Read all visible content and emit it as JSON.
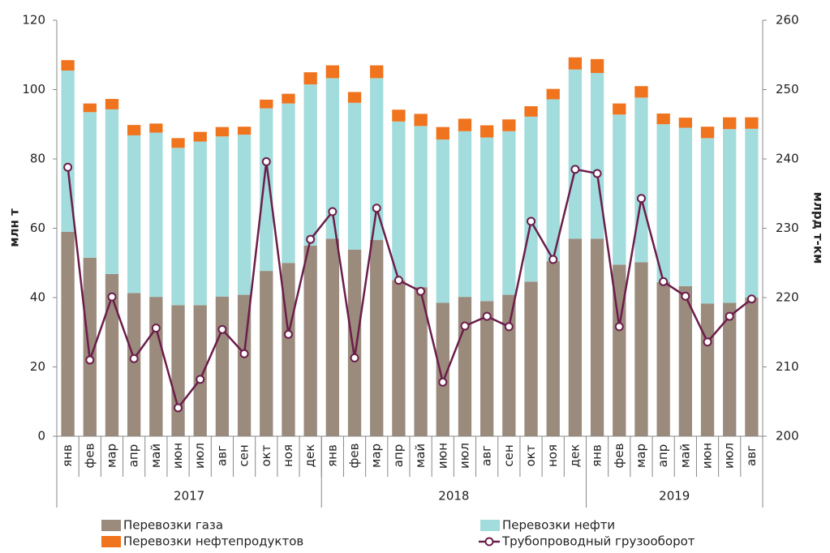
{
  "chart_data": {
    "type": "bar",
    "groups": [
      {
        "label": "2017",
        "categories": [
          "янв",
          "фев",
          "мар",
          "апр",
          "май",
          "июн",
          "июл",
          "авг",
          "сен",
          "окт",
          "ноя",
          "дек"
        ]
      },
      {
        "label": "2018",
        "categories": [
          "янв",
          "фев",
          "мар",
          "апр",
          "май",
          "июн",
          "июл",
          "авг",
          "сен",
          "окт",
          "ноя",
          "дек"
        ]
      },
      {
        "label": "2019",
        "categories": [
          "янв",
          "фев",
          "мар",
          "апр",
          "май",
          "июн",
          "июл",
          "авг"
        ]
      }
    ],
    "ylabel": "млн т",
    "y2label": "млрд т-км",
    "ylim": [
      0,
      120
    ],
    "yticks": [
      0,
      20,
      40,
      60,
      80,
      100,
      120
    ],
    "y2lim": [
      200,
      260
    ],
    "y2ticks": [
      200,
      210,
      220,
      230,
      240,
      250,
      260
    ],
    "stacked": true,
    "series": [
      {
        "name": "Перевозки газа",
        "color": "#9b8b7d",
        "values": [
          59,
          51.5,
          46.8,
          41.3,
          40.2,
          37.8,
          37.8,
          40.3,
          40.8,
          47.7,
          50,
          55,
          57,
          53.8,
          56.6,
          45,
          43,
          38.5,
          40.2,
          39,
          40.8,
          44.6,
          50.5,
          57,
          57,
          49.5,
          50.2,
          44.5,
          43.3,
          38.3,
          38.5,
          40
        ]
      },
      {
        "name": "Перевозки нефти",
        "color": "#a3dcdc",
        "values": [
          46.5,
          42,
          47.5,
          45.5,
          47.4,
          45.4,
          47.2,
          46.2,
          46.2,
          46.9,
          46,
          46.5,
          46.3,
          42.4,
          46.7,
          45.8,
          46.5,
          47.1,
          47.8,
          47.2,
          47.2,
          47.6,
          46.7,
          48.8,
          47.8,
          43.3,
          47.5,
          45.5,
          45.7,
          47.7,
          50.1,
          48.7
        ]
      },
      {
        "name": "Перевозки нефтепродуктов",
        "color": "#f0731e",
        "values": [
          3,
          2.5,
          3,
          3,
          2.6,
          2.8,
          2.8,
          2.7,
          2.3,
          2.5,
          2.8,
          3.5,
          3.7,
          3.1,
          3.7,
          3.4,
          3.5,
          3.6,
          3.6,
          3.5,
          3.4,
          3,
          3,
          3.5,
          4,
          3.2,
          3.3,
          3.1,
          2.9,
          3.3,
          3.4,
          3.3
        ]
      },
      {
        "name": "Трубопроводный грузооборот",
        "color": "#6b1e4a",
        "type": "line",
        "axis": "y2",
        "values": [
          238.8,
          211,
          220.1,
          211.2,
          215.6,
          204.1,
          208.2,
          215.4,
          211.9,
          239.6,
          214.7,
          228.4,
          232.4,
          211.3,
          232.9,
          222.5,
          220.9,
          207.8,
          215.9,
          217.3,
          215.8,
          231,
          225.5,
          238.5,
          237.9,
          215.8,
          234.3,
          222.3,
          220.2,
          213.6,
          217.3,
          219.8
        ]
      }
    ]
  }
}
